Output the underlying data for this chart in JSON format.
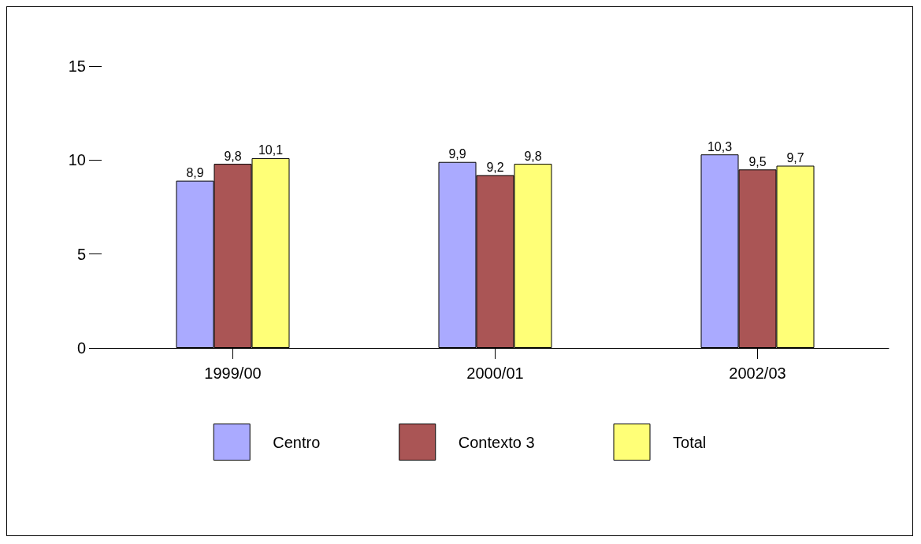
{
  "chart_data": {
    "type": "bar",
    "categories": [
      "1999/00",
      "2000/01",
      "2002/03"
    ],
    "series": [
      {
        "name": "Centro",
        "color": "#aaaaff",
        "values": [
          8.9,
          9.9,
          10.3
        ],
        "value_labels": [
          "8,9",
          "9,9",
          "10,3"
        ]
      },
      {
        "name": "Contexto 3",
        "color": "#aa5555",
        "values": [
          9.8,
          9.2,
          9.5
        ],
        "value_labels": [
          "9,8",
          "9,2",
          "9,5"
        ]
      },
      {
        "name": "Total",
        "color": "#ffff77",
        "values": [
          10.1,
          9.8,
          9.7
        ],
        "value_labels": [
          "10,1",
          "9,8",
          "9,7"
        ]
      }
    ],
    "ylim": [
      0,
      15
    ],
    "yticks": [
      0,
      5,
      10,
      15
    ],
    "grid": false,
    "legend": "bottom"
  }
}
